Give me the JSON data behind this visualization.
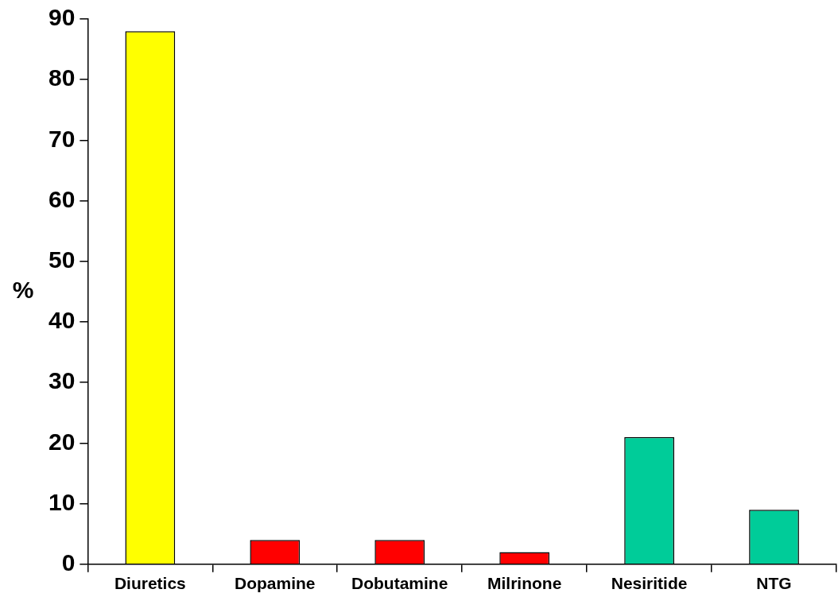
{
  "chart_data": {
    "type": "bar",
    "ylabel": "%",
    "categories": [
      "Diuretics",
      "Dopamine",
      "Dobutamine",
      "Milrinone",
      "Nesiritide",
      "NTG"
    ],
    "values": [
      88,
      4,
      4,
      2,
      21,
      9
    ],
    "colors": [
      "#ffff00",
      "#ff0000",
      "#ff0000",
      "#ff0000",
      "#00cc99",
      "#00cc99"
    ],
    "ylim": [
      0,
      90
    ],
    "yticks": [
      0,
      10,
      20,
      30,
      40,
      50,
      60,
      70,
      80,
      90
    ],
    "grid": false,
    "legend": false
  }
}
